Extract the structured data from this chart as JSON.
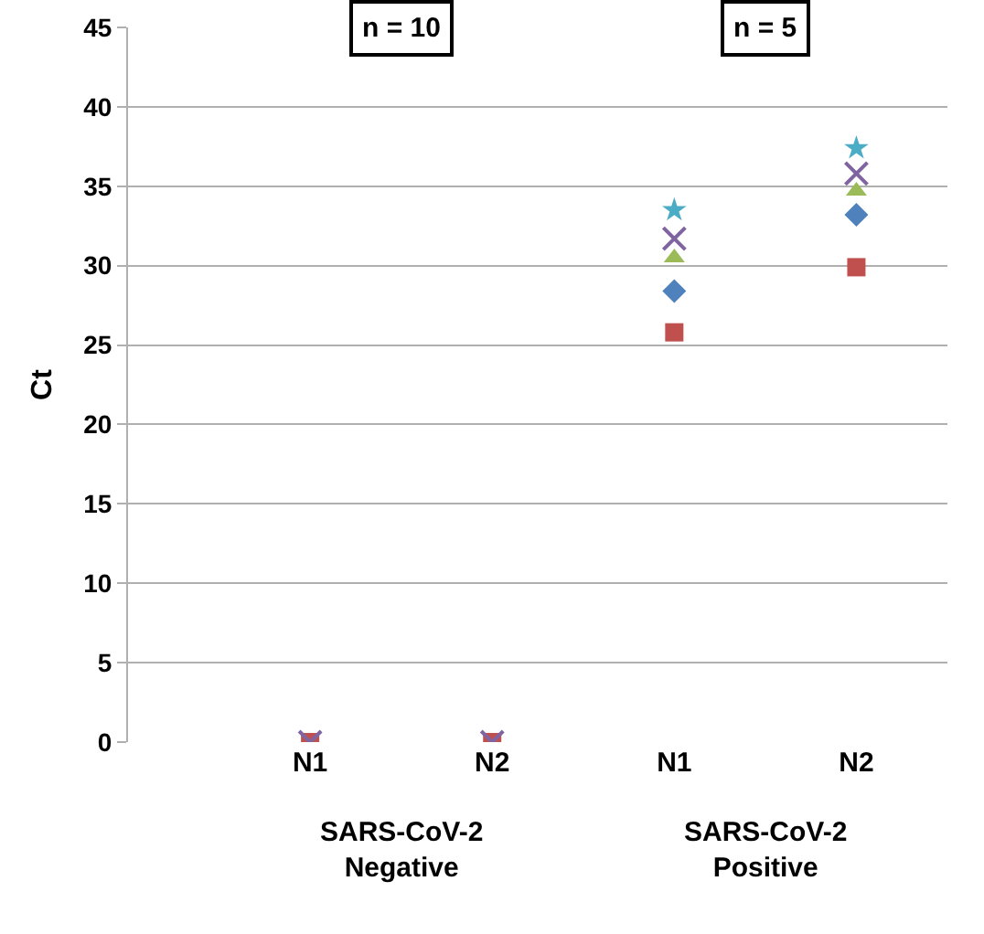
{
  "chart_data": {
    "type": "scatter",
    "ylabel": "Ct",
    "categories": [
      "N1",
      "N2",
      "N1",
      "N2"
    ],
    "ylim": [
      0,
      45
    ],
    "yticks": [
      0,
      5,
      10,
      15,
      20,
      25,
      30,
      35,
      40,
      45
    ],
    "grid": "y",
    "series": [
      {
        "color": "#c0504d",
        "marker": "square",
        "values": [
          0,
          0,
          25.8,
          29.9
        ]
      },
      {
        "color": "#4f81bd",
        "marker": "diamond",
        "values": [
          null,
          null,
          28.4,
          33.2
        ]
      },
      {
        "color": "#9bbb59",
        "marker": "triangle",
        "values": [
          null,
          null,
          30.5,
          34.7
        ]
      },
      {
        "color": "#8064a2",
        "marker": "cross",
        "values": [
          0,
          0,
          31.7,
          35.8
        ]
      },
      {
        "color": "#4bacc6",
        "marker": "star",
        "values": [
          null,
          null,
          33.5,
          37.4
        ]
      }
    ],
    "annotations": [
      "n = 10",
      "n = 5",
      "SARS-CoV-2\nNegative",
      "SARS-CoV-2\nPositive"
    ]
  }
}
